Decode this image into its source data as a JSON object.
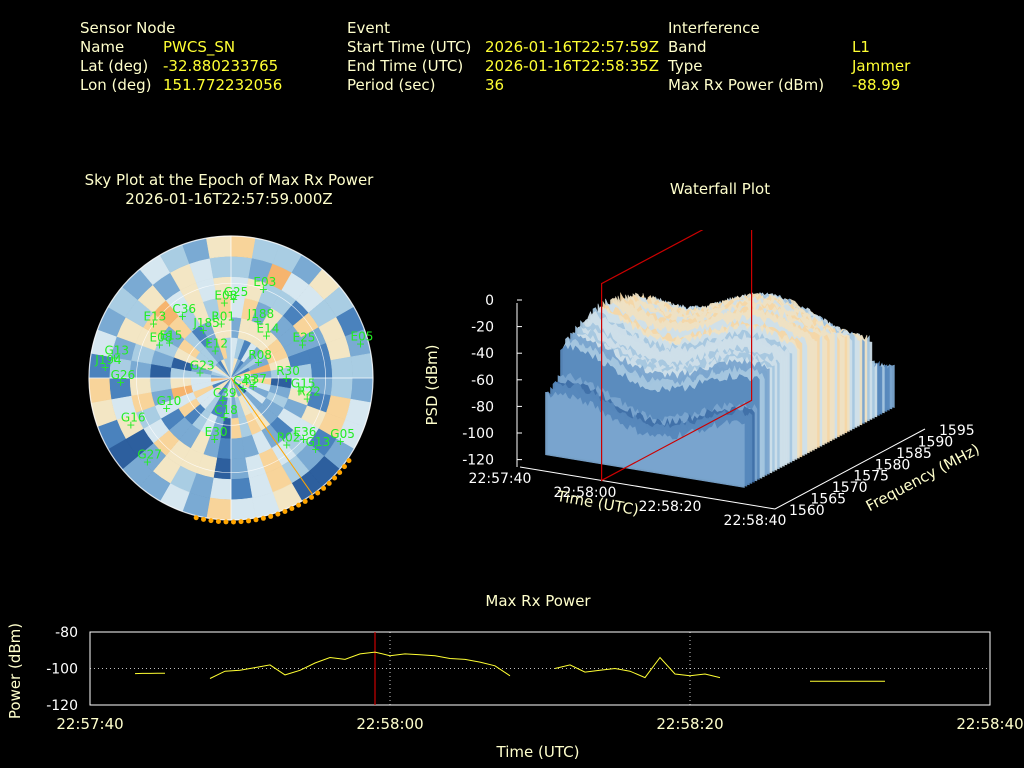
{
  "header": {
    "sensor": {
      "title": "Sensor Node",
      "rows": [
        {
          "label": "Name",
          "value": "PWCS_SN"
        },
        {
          "label": "Lat (deg)",
          "value": "-32.880233765"
        },
        {
          "label": "Lon (deg)",
          "value": "151.772232056"
        }
      ]
    },
    "event": {
      "title": "Event",
      "rows": [
        {
          "label": "Start Time (UTC)",
          "value": "2026-01-16T22:57:59Z"
        },
        {
          "label": "End Time (UTC)",
          "value": "2026-01-16T22:58:35Z"
        },
        {
          "label": "Period (sec)",
          "value": "36"
        }
      ]
    },
    "interference": {
      "title": "Interference",
      "rows": [
        {
          "label": "Band",
          "value": "L1"
        },
        {
          "label": "Type",
          "value": "Jammer"
        },
        {
          "label": "Max Rx Power (dBm)",
          "value": "-88.99"
        }
      ]
    }
  },
  "chart_data": [
    {
      "type": "scatter",
      "subtype": "polar-sky-plot",
      "title": "Sky Plot at the Epoch of Max Rx Power",
      "subtitle": "2026-01-16T22:57:59.000Z",
      "background": "azimuth/elevation heatmap (blue to orange)",
      "azimuth_marker_color": "#ffa500",
      "satellites": [
        {
          "id": "C36",
          "az": 322,
          "el": 40
        },
        {
          "id": "E08",
          "az": 355,
          "el": 42
        },
        {
          "id": "G25",
          "az": 2,
          "el": 40
        },
        {
          "id": "E03",
          "az": 20,
          "el": 30
        },
        {
          "id": "E13",
          "az": 305,
          "el": 30
        },
        {
          "id": "R01",
          "az": 350,
          "el": 55
        },
        {
          "id": "J185",
          "az": 330,
          "el": 55
        },
        {
          "id": "J188",
          "az": 25,
          "el": 50
        },
        {
          "id": "E15",
          "az": 300,
          "el": 45
        },
        {
          "id": "E08",
          "az": 295,
          "el": 40
        },
        {
          "id": "E14",
          "az": 40,
          "el": 55
        },
        {
          "id": "E25",
          "az": 65,
          "el": 40
        },
        {
          "id": "E05",
          "az": 75,
          "el": 5
        },
        {
          "id": "G13",
          "az": 280,
          "el": 15
        },
        {
          "id": "J194",
          "az": 275,
          "el": 10
        },
        {
          "id": "G26",
          "az": 268,
          "el": 20
        },
        {
          "id": "E12",
          "az": 330,
          "el": 70
        },
        {
          "id": "G23",
          "az": 280,
          "el": 70
        },
        {
          "id": "R08",
          "az": 60,
          "el": 70
        },
        {
          "id": "R30",
          "az": 90,
          "el": 55
        },
        {
          "id": "R37",
          "az": 110,
          "el": 75
        },
        {
          "id": "G15",
          "az": 100,
          "el": 45
        },
        {
          "id": "R22",
          "az": 105,
          "el": 40
        },
        {
          "id": "C43",
          "az": 130,
          "el": 80
        },
        {
          "id": "G10",
          "az": 245,
          "el": 45
        },
        {
          "id": "C39",
          "az": 200,
          "el": 75
        },
        {
          "id": "C18",
          "az": 190,
          "el": 65
        },
        {
          "id": "E30",
          "az": 195,
          "el": 50
        },
        {
          "id": "R02",
          "az": 140,
          "el": 35
        },
        {
          "id": "E36",
          "az": 130,
          "el": 30
        },
        {
          "id": "G13",
          "az": 130,
          "el": 20
        },
        {
          "id": "G05",
          "az": 120,
          "el": 10
        },
        {
          "id": "G16",
          "az": 245,
          "el": 20
        },
        {
          "id": "G27",
          "az": 225,
          "el": 15
        }
      ]
    },
    {
      "type": "area",
      "subtype": "3d-waterfall",
      "title": "Waterfall Plot",
      "xlabel": "Time (UTC)",
      "ylabel": "Frequency (MHz)",
      "zlabel": "PSD (dBm)",
      "x_ticks": [
        "22:57:40",
        "22:58:00",
        "22:58:20",
        "22:58:40"
      ],
      "y_ticks": [
        "1560",
        "1565",
        "1570",
        "1575",
        "1580",
        "1585",
        "1590",
        "1595"
      ],
      "z_ticks": [
        "0",
        "-20",
        "-40",
        "-60",
        "-80",
        "-100",
        "-120"
      ],
      "zlim": [
        -120,
        0
      ],
      "max_epoch_marker": "22:57:59",
      "marker_color": "#cc0000"
    },
    {
      "type": "line",
      "title": "Max Rx Power",
      "xlabel": "Time (UTC)",
      "ylabel": "Power (dBm)",
      "x_ticks": [
        "22:57:40",
        "22:58:00",
        "22:58:20",
        "22:58:40"
      ],
      "y_ticks": [
        "-80",
        "-100",
        "-120"
      ],
      "ylim": [
        -120,
        -80
      ],
      "xlim_sec": [
        0,
        60
      ],
      "event_marker_sec": 19,
      "line_color": "#ffff33",
      "series": [
        {
          "values_sec": [
            3,
            3.5,
            4,
            4.5,
            5
          ],
          "values": [
            -102.8,
            -102.7,
            -102.7,
            -102.6,
            -102.6
          ]
        },
        {
          "values_sec": [
            8,
            9,
            10,
            11,
            12,
            13,
            14,
            15,
            16,
            17,
            18,
            19,
            20,
            21,
            22,
            23,
            24,
            25,
            26,
            27,
            28
          ],
          "values": [
            -105.5,
            -101.5,
            -101,
            -99.5,
            -98,
            -103.5,
            -101,
            -97,
            -94,
            -95,
            -92,
            -91,
            -93,
            -92,
            -92.5,
            -93,
            -94.5,
            -95,
            -96.5,
            -98.5,
            -104
          ]
        },
        {
          "values_sec": [
            31,
            32,
            33,
            34,
            35,
            36,
            37,
            38,
            39,
            40,
            41,
            42
          ],
          "values": [
            -100,
            -98,
            -102,
            -101,
            -100,
            -101.5,
            -105,
            -94,
            -103,
            -104,
            -103,
            -105
          ]
        },
        {
          "values_sec": [
            48,
            53
          ],
          "values": [
            -107,
            -107
          ]
        }
      ]
    }
  ]
}
